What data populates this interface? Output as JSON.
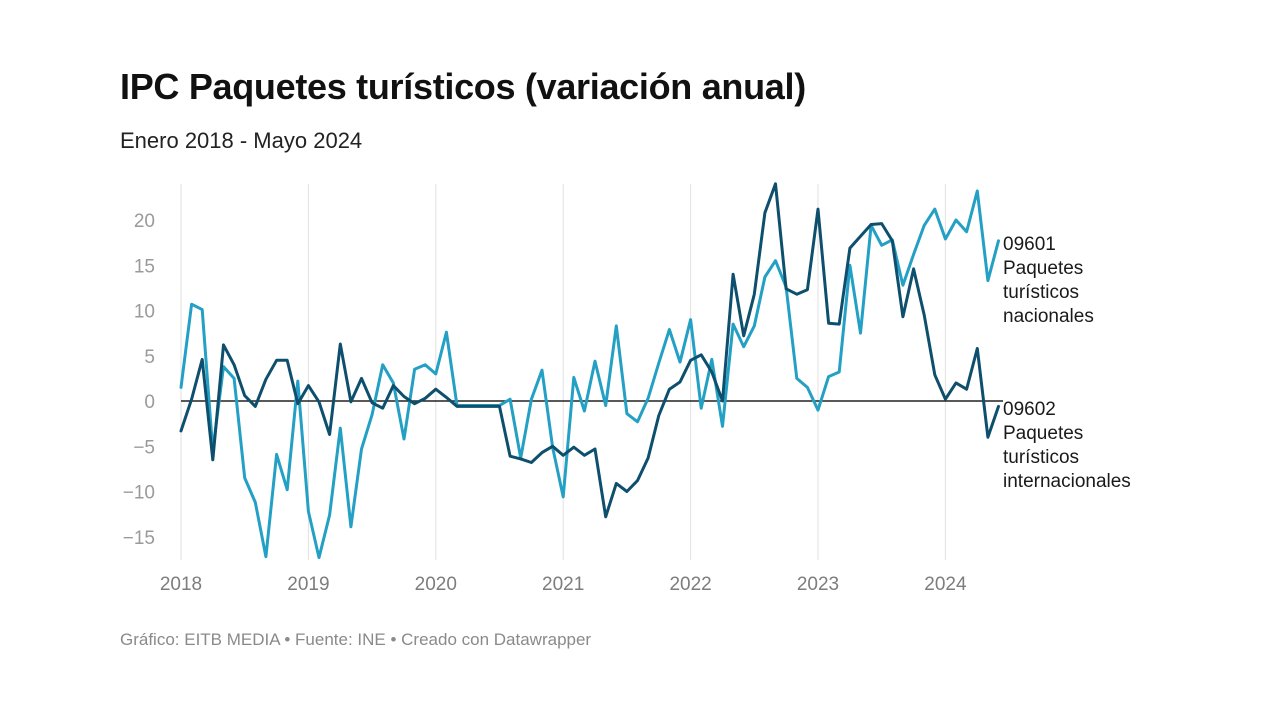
{
  "header": {
    "title": "IPC Paquetes turísticos (variación anual)",
    "subtitle": "Enero 2018 - Mayo 2024"
  },
  "footer": {
    "source_text": "Gráfico: EITB MEDIA • Fuente: INE • Creado con Datawrapper"
  },
  "colors": {
    "nacionales": "#23a0c4",
    "internacionales": "#0e4f6e",
    "gridline": "#e2e2e2",
    "zeroline": "#222222"
  },
  "chart_data": {
    "type": "line",
    "title": "IPC Paquetes turísticos (variación anual)",
    "subtitle": "Enero 2018 - Mayo 2024",
    "xlabel": "",
    "ylabel": "",
    "x_start": "2018-01",
    "x_end": "2024-05",
    "xlim": [
      2018.0,
      2024.5
    ],
    "ylim": [
      -17.5,
      24
    ],
    "grid": "vertical",
    "yticks": [
      20,
      15,
      10,
      5,
      0,
      -5,
      -10,
      -15
    ],
    "ytick_labels": [
      "20",
      "15",
      "10",
      "5",
      "0",
      "−5",
      "−10",
      "−15"
    ],
    "xticks": [
      2018,
      2019,
      2020,
      2021,
      2022,
      2023,
      2024
    ],
    "xtick_labels": [
      "2018",
      "2019",
      "2020",
      "2021",
      "2022",
      "2023",
      "2024"
    ],
    "series": [
      {
        "name": "09601 Paquetes turísticos nacionales",
        "label_lines": [
          "09601",
          "Paquetes",
          "turísticos",
          "nacionales"
        ],
        "color_key": "nacionales",
        "values": [
          1.5,
          10.7,
          10.1,
          -5.5,
          3.8,
          2.5,
          -8.5,
          -11.2,
          -17.2,
          -5.9,
          -9.8,
          2.2,
          -12.2,
          -17.3,
          -12.6,
          -3.0,
          -13.9,
          -5.3,
          -1.5,
          4.0,
          2.0,
          -4.2,
          3.5,
          4.0,
          3.0,
          7.6,
          -0.5,
          -0.5,
          -0.5,
          -0.5,
          -0.5,
          0.2,
          -6.3,
          0.2,
          3.4,
          -5.1,
          -10.6,
          2.6,
          -1.1,
          4.4,
          -0.5,
          8.3,
          -1.4,
          -2.3,
          0.3,
          4.2,
          7.9,
          4.3,
          9.0,
          -0.8,
          4.6,
          -2.8,
          8.5,
          6.0,
          8.3,
          13.7,
          15.5,
          12.6,
          2.5,
          1.5,
          -1.0,
          2.7,
          3.2,
          15.0,
          7.5,
          19.4,
          17.2,
          17.8,
          12.8,
          16.2,
          19.4,
          21.2,
          17.9,
          20.0,
          18.7,
          23.2,
          13.3,
          17.7
        ]
      },
      {
        "name": "09602 Paquetes turísticos internacionales",
        "label_lines": [
          "09602",
          "Paquetes",
          "turísticos",
          "internacionales"
        ],
        "color_key": "internacionales",
        "values": [
          -3.3,
          0.2,
          4.6,
          -6.5,
          6.2,
          4.0,
          0.6,
          -0.6,
          2.4,
          4.5,
          4.5,
          -0.3,
          1.7,
          -0.1,
          -3.7,
          6.3,
          -0.1,
          2.5,
          -0.2,
          -0.8,
          1.7,
          0.5,
          -0.3,
          0.3,
          1.3,
          0.4,
          -0.6,
          -0.6,
          -0.6,
          -0.6,
          -0.6,
          -6.1,
          -6.4,
          -6.8,
          -5.7,
          -5.0,
          -6.0,
          -5.1,
          -6.0,
          -5.3,
          -12.8,
          -9.1,
          -10.0,
          -8.8,
          -6.3,
          -1.6,
          1.3,
          2.1,
          4.5,
          5.1,
          3.2,
          0.0,
          14.0,
          7.2,
          11.8,
          20.8,
          24.0,
          12.4,
          11.8,
          12.3,
          21.2,
          8.6,
          8.5,
          16.9,
          18.2,
          19.5,
          19.6,
          17.7,
          9.3,
          14.6,
          9.5,
          2.9,
          0.2,
          2.0,
          1.3,
          5.8,
          -4.0,
          -0.6
        ]
      }
    ]
  }
}
